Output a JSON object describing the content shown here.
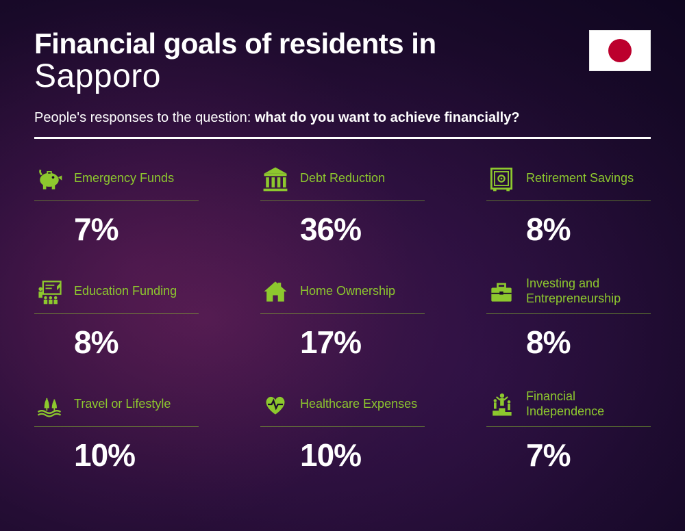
{
  "title_line1": "Financial goals of residents in",
  "title_line2": "Sapporo",
  "subtitle_prefix": "People's responses to the question: ",
  "subtitle_bold": "what do you want to achieve financially?",
  "accent_color": "#8dc82e",
  "text_color": "#ffffff",
  "flag": {
    "bg": "#ffffff",
    "circle": "#bc002d"
  },
  "items": [
    {
      "label": "Emergency Funds",
      "value": "7%",
      "icon": "piggy"
    },
    {
      "label": "Debt Reduction",
      "value": "36%",
      "icon": "bank"
    },
    {
      "label": "Retirement Savings",
      "value": "8%",
      "icon": "safe"
    },
    {
      "label": "Education Funding",
      "value": "8%",
      "icon": "education"
    },
    {
      "label": "Home Ownership",
      "value": "17%",
      "icon": "home"
    },
    {
      "label": "Investing and Entrepreneurship",
      "value": "8%",
      "icon": "briefcase"
    },
    {
      "label": "Travel or Lifestyle",
      "value": "10%",
      "icon": "travel"
    },
    {
      "label": "Healthcare Expenses",
      "value": "10%",
      "icon": "health"
    },
    {
      "label": "Financial Independence",
      "value": "7%",
      "icon": "independence"
    }
  ]
}
